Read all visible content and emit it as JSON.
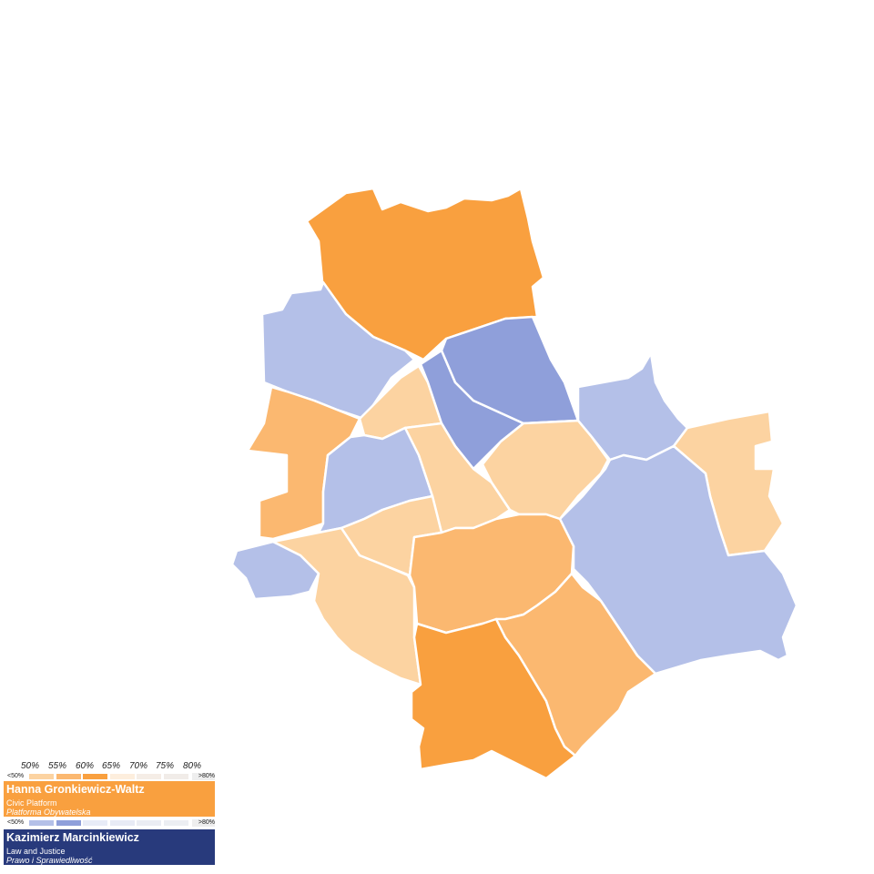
{
  "colors": {
    "po_dark": "#f9a03f",
    "po_mid": "#fbb870",
    "po_light": "#fcd3a1",
    "pis_light": "#b4c0e8",
    "pis_mid": "#8f9fda",
    "po_box": "#f9a03f",
    "pis_box": "#283a7c"
  },
  "legend": {
    "scale": [
      "50%",
      "55%",
      "60%",
      "65%",
      "70%",
      "75%",
      "80%"
    ],
    "below": "<50%",
    "above": ">80%",
    "candidates": [
      {
        "name": "Hanna Gronkiewicz-Waltz",
        "party": "Civic Platform",
        "party_pl": "Platforma Obywatelska",
        "swatches": [
          "#fcd3a1",
          "#fbb870",
          "#f9a03f",
          "#fdeedd",
          "#f5ede6",
          "#f1ece8"
        ]
      },
      {
        "name": "Kazimierz Marcinkiewicz",
        "party": "Law and Justice",
        "party_pl": "Prawo i Sprawiedliwość",
        "swatches": [
          "#b4c0e8",
          "#8f9fda",
          "#e8ecf7",
          "#e8ebf5",
          "#ebedf3",
          "#eceef2"
        ]
      }
    ]
  },
  "districts": [
    {
      "winner": "PO",
      "band": "60-65%",
      "color": "#f9a03f"
    },
    {
      "winner": "PiS",
      "band": "<50%",
      "color": "#b4c0e8"
    },
    {
      "winner": "PO",
      "band": "<50%",
      "color": "#fcd3a1"
    },
    {
      "winner": "PiS",
      "band": "50-55%",
      "color": "#8f9fda"
    },
    {
      "winner": "PiS",
      "band": "50-55%",
      "color": "#8f9fda"
    },
    {
      "winner": "PiS",
      "band": "<50%",
      "color": "#b4c0e8"
    },
    {
      "winner": "PO",
      "band": "<50%",
      "color": "#fcd3a1"
    },
    {
      "winner": "PiS",
      "band": "<50%",
      "color": "#b4c0e8"
    },
    {
      "winner": "PO",
      "band": "50-55%",
      "color": "#fbb870"
    },
    {
      "winner": "PiS",
      "band": "<50%",
      "color": "#b4c0e8"
    },
    {
      "winner": "PO",
      "band": "<50%",
      "color": "#fcd3a1"
    },
    {
      "winner": "PO",
      "band": "<50%",
      "color": "#fcd3a1"
    },
    {
      "winner": "PiS",
      "band": "<50%",
      "color": "#b4c0e8"
    },
    {
      "winner": "PO",
      "band": "<50%",
      "color": "#fcd3a1"
    },
    {
      "winner": "PO",
      "band": "<50%",
      "color": "#fcd3a1"
    },
    {
      "winner": "PO",
      "band": "50-55%",
      "color": "#fbb870"
    },
    {
      "winner": "PO",
      "band": "60-65%",
      "color": "#f9a03f"
    },
    {
      "winner": "PO",
      "band": "50-55%",
      "color": "#fbb870"
    }
  ]
}
